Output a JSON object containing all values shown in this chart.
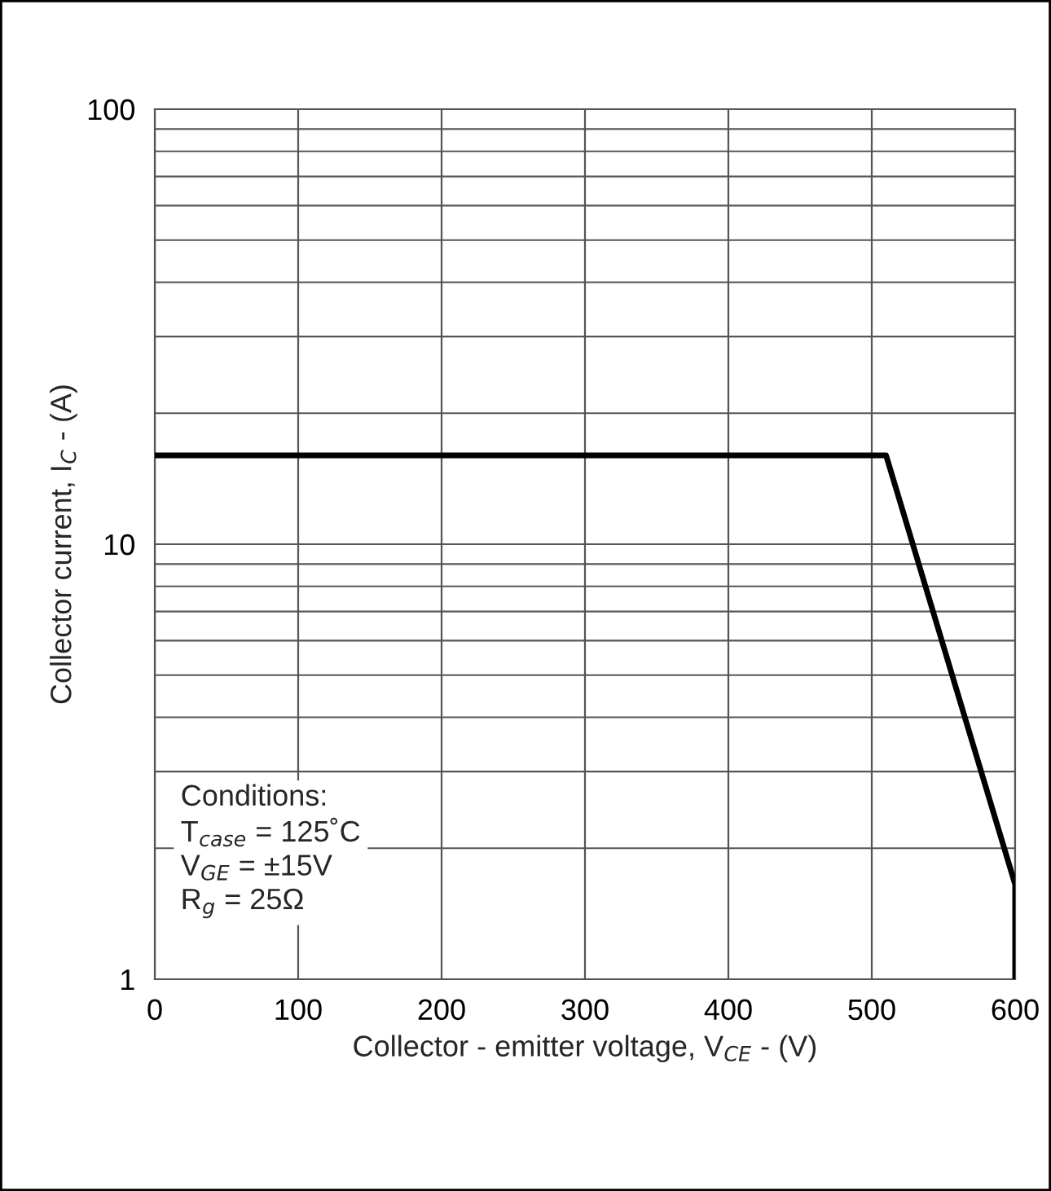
{
  "chart_data": {
    "type": "line",
    "xlabel": "Collector - emitter voltage, V$_{CE}$ - (V)",
    "ylabel": "Collector current, I$_{C}$ - (A)",
    "x": [
      0,
      510,
      600,
      600
    ],
    "series": [
      {
        "color": "#000000",
        "values": [
          16,
          16,
          1.65,
          1
        ]
      }
    ],
    "xlim": [
      0,
      600
    ],
    "xticks": [
      0,
      100,
      200,
      300,
      400,
      500,
      600
    ],
    "ylim": [
      1,
      100
    ],
    "yticks": [
      1,
      10,
      100
    ],
    "log": "y",
    "grid": true,
    "marker": "none",
    "line_style": "solid",
    "annotations": [
      "Conditions:\nT$_{case}$ = 125˚C\nV$_{GE}$ = ±15V\nR$_{g}$ = 25Ω"
    ]
  }
}
